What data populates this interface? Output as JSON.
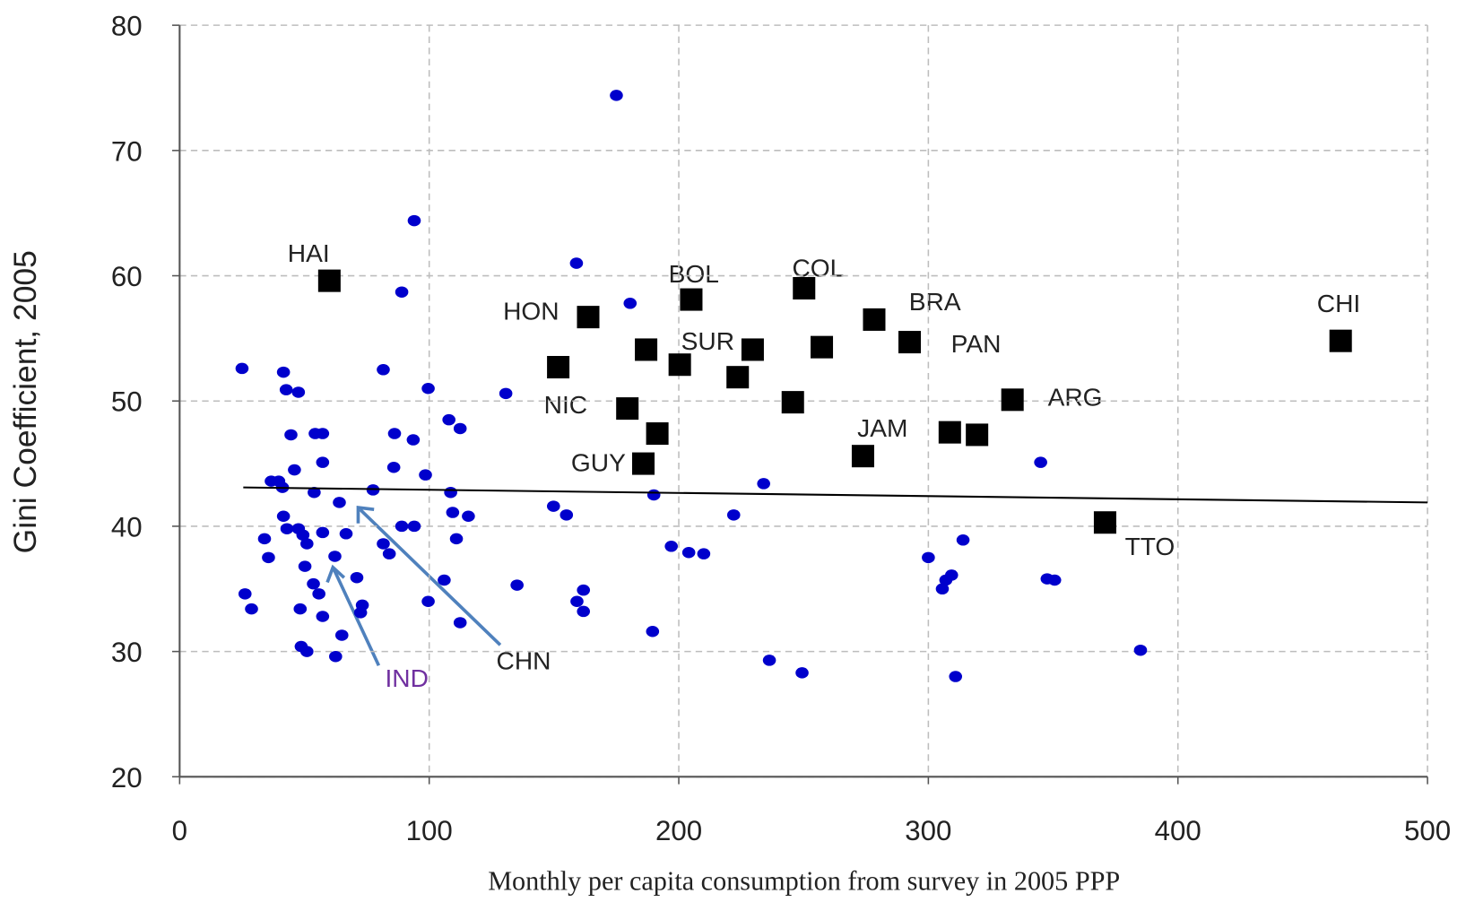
{
  "chart_data": {
    "type": "scatter",
    "x_label": "Monthly per capita consumption from survey in 2005 PPP",
    "y_label": "Gini Coefficient, 2005",
    "xlim": [
      0,
      500
    ],
    "xticks": [
      0,
      100,
      200,
      300,
      400,
      500
    ],
    "ylim": [
      20,
      80
    ],
    "yticks": [
      20,
      30,
      40,
      50,
      60,
      70,
      80
    ],
    "grid": true,
    "series": [
      {
        "color": "#0000cc",
        "marker": "circle",
        "x": [
          175,
          94,
          159,
          89,
          180.5,
          25,
          81.6,
          41.6,
          42.7,
          47.6,
          99.6,
          130.7,
          107.9,
          112.4,
          44.6,
          54.3,
          57.3,
          86.1,
          93.6,
          57.3,
          46,
          85.8,
          98.5,
          345,
          234,
          36.7,
          39.7,
          41.2,
          53.9,
          77.5,
          64,
          108.6,
          190,
          149.8,
          155,
          109.4,
          115.7,
          222,
          41.6,
          43,
          47.6,
          49.4,
          57.3,
          66.7,
          110.9,
          34,
          313.9,
          51,
          81.6,
          197,
          204,
          210,
          35.6,
          84,
          62.2,
          300,
          50.2,
          309.3,
          307,
          71,
          106,
          347.6,
          350.6,
          305.6,
          53.6,
          135.2,
          26.2,
          55.8,
          161.8,
          73.2,
          159.2,
          72.5,
          28.8,
          48.3,
          57.3,
          161.8,
          112.4,
          189.5,
          65,
          48.7,
          51,
          99.6,
          62.5,
          236.3,
          385,
          249.4,
          310.9,
          89,
          94
        ],
        "values": [
          74.4,
          64.4,
          61,
          58.7,
          57.8,
          52.6,
          52.5,
          52.3,
          50.9,
          50.7,
          51,
          50.6,
          48.5,
          47.8,
          47.3,
          47.4,
          47.4,
          47.4,
          46.9,
          45.1,
          44.5,
          44.7,
          44.1,
          45.1,
          43.4,
          43.6,
          43.6,
          43.1,
          42.7,
          42.9,
          41.9,
          42.7,
          42.5,
          41.6,
          40.9,
          41.1,
          40.8,
          40.9,
          40.8,
          39.8,
          39.8,
          39.3,
          39.5,
          39.4,
          39,
          39,
          38.9,
          38.6,
          38.6,
          38.4,
          37.9,
          37.8,
          37.5,
          37.8,
          37.6,
          37.5,
          36.8,
          36.1,
          35.7,
          35.9,
          35.7,
          35.8,
          35.7,
          35,
          35.4,
          35.3,
          34.6,
          34.6,
          34.9,
          33.7,
          34,
          33.1,
          33.4,
          33.4,
          32.8,
          33.2,
          32.3,
          31.6,
          31.3,
          30.4,
          30,
          34,
          29.6,
          29.3,
          30.1,
          28.3,
          28,
          40,
          40
        ]
      },
      {
        "color": "#000000",
        "marker": "square",
        "x": [
          60,
          163.7,
          205,
          250.2,
          278.3,
          292.5,
          465.2,
          151.7,
          186.9,
          200.4,
          229.6,
          257.3,
          223.6,
          245.7,
          179.4,
          191.4,
          185.8,
          273.8,
          308.6,
          319.5,
          333.7,
          370.8
        ],
        "values": [
          59.6,
          56.7,
          58.1,
          59,
          56.5,
          54.7,
          54.8,
          52.7,
          54.1,
          52.9,
          54.1,
          54.3,
          51.9,
          49.9,
          49.4,
          47.4,
          45,
          45.6,
          47.5,
          47.3,
          50.1,
          40.3
        ]
      }
    ],
    "trendline": {
      "color": "#000000",
      "x": [
        25.5,
        500
      ],
      "values": [
        43.1,
        41.9
      ]
    },
    "annotations": [
      "HAI",
      "HON",
      "BOL",
      "COL",
      "BRA",
      "CHI",
      "SUR",
      "PAN",
      "NIC",
      "ARG",
      "JAM",
      "GUY",
      "TTO",
      "CHN",
      "IND"
    ]
  }
}
